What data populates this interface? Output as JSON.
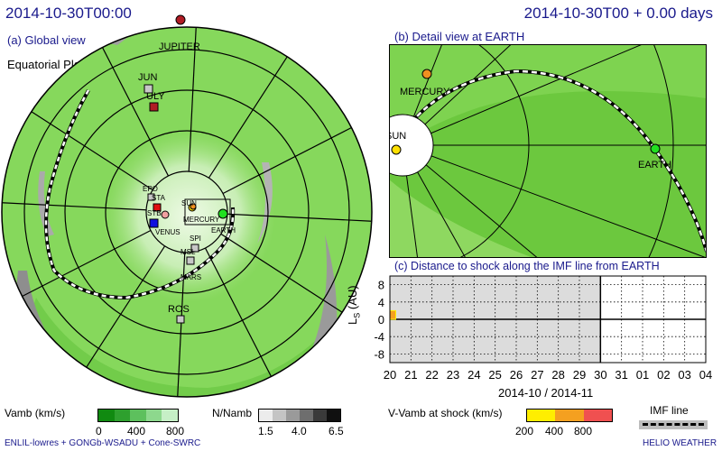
{
  "header": {
    "date_left": "2014-10-30T00:00",
    "date_right": "2014-10-30T00 + 0.00 days"
  },
  "global_view": {
    "label": "(a) Global view",
    "plane_label": "Equatorial Plane",
    "bodies": [
      {
        "name": "JUPITER",
        "color": "#b01c24",
        "shape": "circle"
      },
      {
        "name": "JUN",
        "color": "#c8c8c8",
        "shape": "square"
      },
      {
        "name": "ULY",
        "color": "#b01c24",
        "shape": "square"
      },
      {
        "name": "EPO",
        "color": "#c8c8c8",
        "shape": "square"
      },
      {
        "name": "STA",
        "color": "#e01010",
        "shape": "square"
      },
      {
        "name": "STB",
        "color": "#f0a0a0",
        "shape": "circle"
      },
      {
        "name": "VENUS",
        "color": "#1010e0",
        "shape": "square"
      },
      {
        "name": "SUN",
        "color": "#ffe000",
        "shape": "circle"
      },
      {
        "name": "MERCURY",
        "color": "#f09020",
        "shape": "circle"
      },
      {
        "name": "EARTH",
        "color": "#20e020",
        "shape": "circle"
      },
      {
        "name": "SPI",
        "color": "#c8c8c8",
        "shape": "square"
      },
      {
        "name": "MSL",
        "color": "#c8c8c8",
        "shape": "square"
      },
      {
        "name": "MARS",
        "color": "#c8c8c8",
        "shape": "square"
      },
      {
        "name": "ROS",
        "color": "#c8c8c8",
        "shape": "square"
      }
    ]
  },
  "detail_view": {
    "label": "(b) Detail view at EARTH",
    "sun_label": "SUN",
    "mercury_label": "MERCURY",
    "earth_label": "EARTH"
  },
  "chart_data": {
    "type": "line",
    "title": "(c) Distance to shock along the IMF line from EARTH",
    "ylabel_main": "L",
    "ylabel_sub": "S",
    "ylabel_unit": " (AU)",
    "xlabel": "2014-10 / 2014-11",
    "x_ticks": [
      "20",
      "21",
      "22",
      "23",
      "24",
      "25",
      "26",
      "27",
      "28",
      "29",
      "30",
      "31",
      "01",
      "02",
      "03",
      "04"
    ],
    "y_ticks": [
      8,
      4,
      0,
      -4,
      -8
    ],
    "ylim": [
      -10,
      10
    ],
    "past_region": [
      "20",
      "30"
    ],
    "series": [
      {
        "x_start": "20",
        "x_end": "20.15",
        "value": 2
      }
    ]
  },
  "legend": {
    "vamb_label": "Vamb (km/s)",
    "vamb_ticks": [
      "0",
      "400",
      "800"
    ],
    "vamb_colors": [
      "#108a10",
      "#2ea02e",
      "#5dc05d",
      "#8dd88d",
      "#c6efc6"
    ],
    "namb_label": "N/Namb",
    "namb_ticks": [
      "1.5",
      "4.0",
      "6.5"
    ],
    "namb_colors": [
      "#ececec",
      "#c4c4c4",
      "#9a9a9a",
      "#6e6e6e",
      "#3a3a3a",
      "#101010"
    ],
    "shock_label": "V-Vamb at shock (km/s)",
    "shock_ticks": [
      "200",
      "400",
      "800"
    ],
    "shock_colors": [
      "#ffee00",
      "#f4a020",
      "#f05050"
    ],
    "imf_label": "IMF line"
  },
  "footer": {
    "model": "ENLIL-lowres + GONGb-WSADU + Cone-SWRC",
    "brand": "HELIO WEATHER"
  }
}
